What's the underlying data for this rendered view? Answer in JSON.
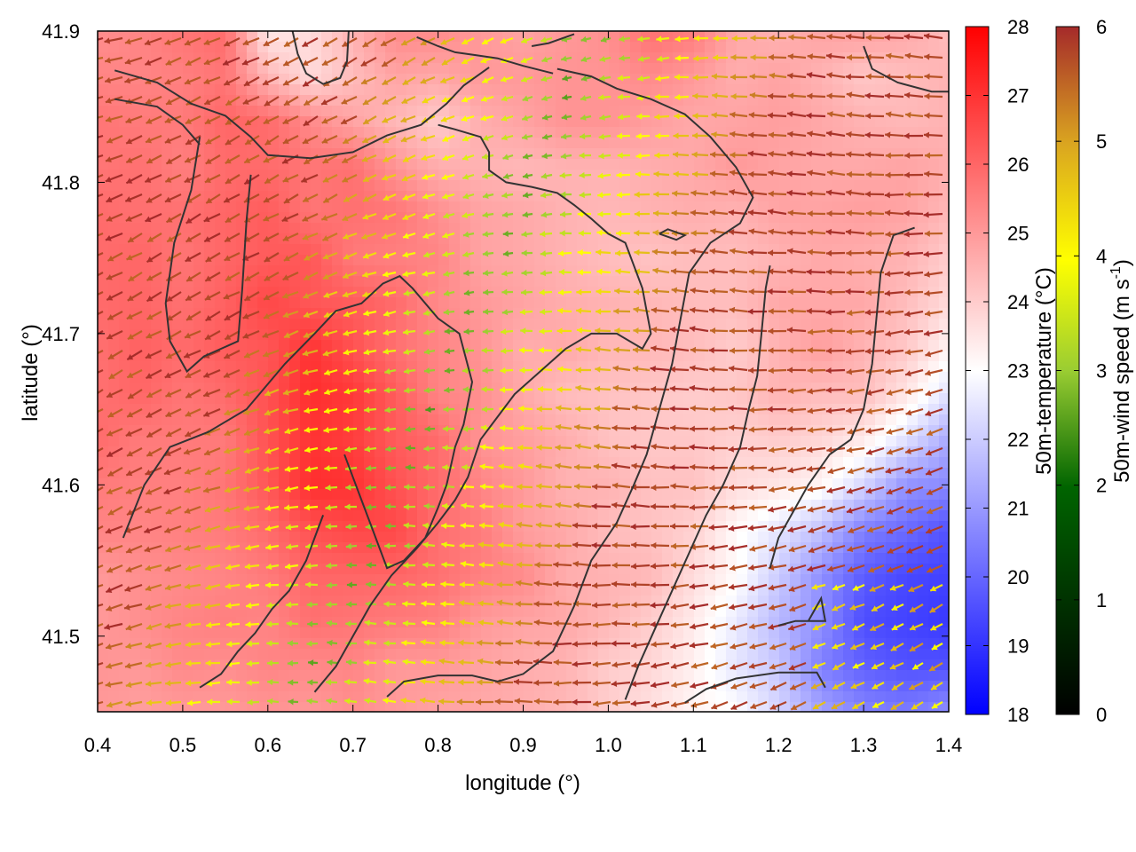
{
  "chart_data": {
    "type": "heatmap",
    "title": "",
    "xlabel": "longitude (°)",
    "ylabel": "latitude (°)",
    "xlim": [
      0.4,
      1.4
    ],
    "ylim": [
      41.45,
      41.9
    ],
    "xticks": [
      "0.4",
      "0.5",
      "0.6",
      "0.7",
      "0.8",
      "0.9",
      "1.0",
      "1.1",
      "1.2",
      "1.3",
      "1.4"
    ],
    "yticks": [
      "41.5",
      "41.6",
      "41.7",
      "41.8",
      "41.9"
    ],
    "xtick_values": [
      0.4,
      0.5,
      0.6,
      0.7,
      0.8,
      0.9,
      1.0,
      1.1,
      1.2,
      1.3,
      1.4
    ],
    "ytick_values": [
      41.5,
      41.6,
      41.7,
      41.8,
      41.9
    ],
    "temperature_colorbar": {
      "label": "50m-temperature (°C)",
      "range": [
        18,
        28
      ],
      "ticks": [
        "18",
        "19",
        "20",
        "21",
        "22",
        "23",
        "24",
        "25",
        "26",
        "27",
        "28"
      ],
      "tick_values": [
        18,
        19,
        20,
        21,
        22,
        23,
        24,
        25,
        26,
        27,
        28
      ],
      "colors": [
        "#0000ff",
        "#ffffff",
        "#ff0000"
      ]
    },
    "wind_colorbar": {
      "label": "50m-wind speed (m s",
      "label_sup": "-1",
      "label_end": ")",
      "range": [
        0,
        6
      ],
      "ticks": [
        "0",
        "1",
        "2",
        "3",
        "4",
        "5",
        "6"
      ],
      "tick_values": [
        0,
        1,
        2,
        3,
        4,
        5,
        6
      ],
      "colors": [
        "#000000",
        "#006400",
        "#9acd32",
        "#ffff00",
        "#daa520",
        "#a52a2a"
      ]
    },
    "temperature_field": [
      [
        25.2,
        25.4,
        25.7,
        25.9,
        23.4,
        23.7,
        24.5,
        25.3,
        25.3,
        25.0,
        24.8,
        25.0,
        25.2,
        25.8,
        25.6,
        24.7,
        24.5,
        24.8,
        24.9,
        24.7,
        24.3
      ],
      [
        25.4,
        25.4,
        25.5,
        25.7,
        24.4,
        23.7,
        24.3,
        24.8,
        24.7,
        25.0,
        25.0,
        25.1,
        25.1,
        25.3,
        25.0,
        24.6,
        24.8,
        24.5,
        24.1,
        24.3,
        24.5
      ],
      [
        25.7,
        25.6,
        25.6,
        26.0,
        25.9,
        25.3,
        24.8,
        24.4,
        24.0,
        24.6,
        24.8,
        25.1,
        25.1,
        24.9,
        24.7,
        24.8,
        24.9,
        24.7,
        24.5,
        24.4,
        24.5
      ],
      [
        25.7,
        25.8,
        25.5,
        25.9,
        25.9,
        25.7,
        25.8,
        25.1,
        24.6,
        24.5,
        24.4,
        24.5,
        24.5,
        24.6,
        24.7,
        25.0,
        24.8,
        24.7,
        24.7,
        24.8,
        24.6
      ],
      [
        25.9,
        25.8,
        25.8,
        26.0,
        26.2,
        25.7,
        25.8,
        25.7,
        25.2,
        24.8,
        24.7,
        24.5,
        24.4,
        24.5,
        24.6,
        24.5,
        24.8,
        24.8,
        24.9,
        24.8,
        24.4
      ],
      [
        25.9,
        26.0,
        25.7,
        26.0,
        26.2,
        26.3,
        25.6,
        25.5,
        25.4,
        24.8,
        24.7,
        24.5,
        24.3,
        24.2,
        24.3,
        24.3,
        24.5,
        24.7,
        24.6,
        24.5,
        24.0
      ],
      [
        25.9,
        26.0,
        25.8,
        26.1,
        26.6,
        26.3,
        26.2,
        25.9,
        25.3,
        25.0,
        24.8,
        24.6,
        24.5,
        24.4,
        24.3,
        24.3,
        24.7,
        24.7,
        24.7,
        24.3,
        23.7
      ],
      [
        25.8,
        26.1,
        25.9,
        26.2,
        26.3,
        27.0,
        26.4,
        25.8,
        25.4,
        25.1,
        24.6,
        24.7,
        24.4,
        24.4,
        24.3,
        24.0,
        24.5,
        24.9,
        24.5,
        24.1,
        23.2
      ],
      [
        25.8,
        26.0,
        25.7,
        25.9,
        26.4,
        27.1,
        26.9,
        26.2,
        25.4,
        25.2,
        24.7,
        24.3,
        24.2,
        24.1,
        24.0,
        24.1,
        24.5,
        24.3,
        24.3,
        23.5,
        22.4
      ],
      [
        25.9,
        25.6,
        25.6,
        25.6,
        26.4,
        27.0,
        26.8,
        26.2,
        25.9,
        25.1,
        24.9,
        24.6,
        24.2,
        24.1,
        24.1,
        23.9,
        24.0,
        23.8,
        23.4,
        22.4,
        21.3
      ],
      [
        25.6,
        25.5,
        25.5,
        25.7,
        26.3,
        27.1,
        27.0,
        26.4,
        25.9,
        25.4,
        25.0,
        24.5,
        24.5,
        24.2,
        24.2,
        23.7,
        23.5,
        23.2,
        22.2,
        20.9,
        20.7
      ],
      [
        25.4,
        25.4,
        25.5,
        25.6,
        25.9,
        26.4,
        26.6,
        26.6,
        25.8,
        25.6,
        24.9,
        24.7,
        24.3,
        24.2,
        23.9,
        23.1,
        22.5,
        21.8,
        20.5,
        20.1,
        19.6
      ],
      [
        25.0,
        25.2,
        25.3,
        25.4,
        25.6,
        26.0,
        26.0,
        26.0,
        25.8,
        25.5,
        25.3,
        24.6,
        24.5,
        24.4,
        23.7,
        23.1,
        22.0,
        20.8,
        19.8,
        19.4,
        19.3
      ],
      [
        25.0,
        25.2,
        25.4,
        25.5,
        25.4,
        25.8,
        25.7,
        25.6,
        25.5,
        25.0,
        24.8,
        24.7,
        24.4,
        24.0,
        23.4,
        22.6,
        21.6,
        20.8,
        19.5,
        19.3,
        19.1
      ],
      [
        25.1,
        25.0,
        25.3,
        25.2,
        25.4,
        25.3,
        25.4,
        25.0,
        25.0,
        24.8,
        24.6,
        24.5,
        24.0,
        23.8,
        23.3,
        22.5,
        21.9,
        20.5,
        19.9,
        19.6,
        19.6
      ],
      [
        25.0,
        24.9,
        25.0,
        25.0,
        25.1,
        25.0,
        25.2,
        25.0,
        24.8,
        24.7,
        24.6,
        24.4,
        24.0,
        23.6,
        23.2,
        23.0,
        22.2,
        21.2,
        20.6,
        20.4,
        20.8
      ]
    ],
    "wind_note": "",
    "contours": [
      {
        "name": "contour-1",
        "points": [
          [
            0.42,
            41.874
          ],
          [
            0.47,
            41.866
          ],
          [
            0.51,
            41.852
          ],
          [
            0.55,
            41.844
          ],
          [
            0.58,
            41.83
          ],
          [
            0.6,
            41.818
          ],
          [
            0.65,
            41.816
          ],
          [
            0.7,
            41.82
          ],
          [
            0.74,
            41.831
          ],
          [
            0.78,
            41.838
          ],
          [
            0.81,
            41.852
          ],
          [
            0.83,
            41.864
          ],
          [
            0.86,
            41.876
          ]
        ]
      },
      {
        "name": "contour-2",
        "points": [
          [
            0.42,
            41.855
          ],
          [
            0.47,
            41.85
          ],
          [
            0.5,
            41.838
          ],
          [
            0.52,
            41.825
          ]
        ]
      },
      {
        "name": "contour-3",
        "points": [
          [
            0.629,
            41.9
          ],
          [
            0.635,
            41.885
          ],
          [
            0.645,
            41.872
          ],
          [
            0.665,
            41.865
          ],
          [
            0.685,
            41.869
          ],
          [
            0.693,
            41.88
          ],
          [
            0.695,
            41.9
          ]
        ]
      },
      {
        "name": "contour-4",
        "points": [
          [
            0.775,
            41.896
          ],
          [
            0.8,
            41.89
          ],
          [
            0.82,
            41.886
          ],
          [
            0.845,
            41.884
          ],
          [
            0.87,
            41.882
          ],
          [
            0.9,
            41.877
          ],
          [
            0.935,
            41.872
          ]
        ]
      },
      {
        "name": "contour-5",
        "points": [
          [
            0.91,
            41.89
          ],
          [
            0.93,
            41.892
          ],
          [
            0.96,
            41.898
          ]
        ]
      },
      {
        "name": "contour-6",
        "points": [
          [
            0.52,
            41.83
          ],
          [
            0.51,
            41.795
          ],
          [
            0.49,
            41.76
          ],
          [
            0.48,
            41.72
          ],
          [
            0.485,
            41.695
          ],
          [
            0.505,
            41.675
          ],
          [
            0.525,
            41.685
          ],
          [
            0.565,
            41.695
          ],
          [
            0.57,
            41.73
          ],
          [
            0.575,
            41.775
          ],
          [
            0.58,
            41.805
          ]
        ]
      },
      {
        "name": "contour-7",
        "points": [
          [
            0.43,
            41.565
          ],
          [
            0.455,
            41.6
          ],
          [
            0.485,
            41.625
          ],
          [
            0.53,
            41.635
          ],
          [
            0.575,
            41.65
          ],
          [
            0.62,
            41.68
          ],
          [
            0.655,
            41.7
          ],
          [
            0.68,
            41.715
          ],
          [
            0.71,
            41.72
          ],
          [
            0.735,
            41.733
          ],
          [
            0.755,
            41.738
          ],
          [
            0.77,
            41.73
          ],
          [
            0.8,
            41.71
          ],
          [
            0.825,
            41.7
          ],
          [
            0.84,
            41.668
          ],
          [
            0.83,
            41.64
          ],
          [
            0.82,
            41.625
          ],
          [
            0.81,
            41.6
          ],
          [
            0.8,
            41.585
          ],
          [
            0.785,
            41.565
          ],
          [
            0.76,
            41.55
          ],
          [
            0.74,
            41.545
          ],
          [
            0.73,
            41.56
          ],
          [
            0.72,
            41.575
          ],
          [
            0.71,
            41.59
          ],
          [
            0.7,
            41.605
          ],
          [
            0.69,
            41.62
          ]
        ]
      },
      {
        "name": "contour-8",
        "points": [
          [
            0.52,
            41.466
          ],
          [
            0.545,
            41.475
          ],
          [
            0.565,
            41.49
          ],
          [
            0.585,
            41.502
          ],
          [
            0.605,
            41.518
          ],
          [
            0.625,
            41.53
          ],
          [
            0.645,
            41.55
          ],
          [
            0.655,
            41.565
          ],
          [
            0.665,
            41.58
          ]
        ]
      },
      {
        "name": "contour-9",
        "points": [
          [
            0.655,
            41.463
          ],
          [
            0.68,
            41.48
          ],
          [
            0.7,
            41.5
          ],
          [
            0.72,
            41.52
          ],
          [
            0.745,
            41.54
          ],
          [
            0.775,
            41.558
          ],
          [
            0.8,
            41.575
          ],
          [
            0.82,
            41.59
          ],
          [
            0.835,
            41.605
          ],
          [
            0.85,
            41.63
          ],
          [
            0.87,
            41.645
          ],
          [
            0.89,
            41.66
          ],
          [
            0.92,
            41.675
          ],
          [
            0.95,
            41.69
          ],
          [
            0.98,
            41.7
          ],
          [
            1.01,
            41.7
          ],
          [
            1.04,
            41.69
          ],
          [
            1.05,
            41.7
          ],
          [
            1.04,
            41.73
          ],
          [
            1.03,
            41.745
          ],
          [
            1.02,
            41.76
          ],
          [
            1.0,
            41.766
          ],
          [
            0.98,
            41.776
          ],
          [
            0.96,
            41.785
          ],
          [
            0.94,
            41.793
          ],
          [
            0.91,
            41.797
          ],
          [
            0.88,
            41.8
          ],
          [
            0.86,
            41.808
          ],
          [
            0.86,
            41.82
          ],
          [
            0.85,
            41.83
          ],
          [
            0.82,
            41.835
          ],
          [
            0.8,
            41.838
          ]
        ]
      },
      {
        "name": "contour-10",
        "points": [
          [
            0.74,
            41.46
          ],
          [
            0.76,
            41.47
          ],
          [
            0.8,
            41.474
          ],
          [
            0.84,
            41.474
          ],
          [
            0.87,
            41.47
          ],
          [
            0.9,
            41.475
          ],
          [
            0.935,
            41.49
          ],
          [
            0.96,
            41.52
          ],
          [
            0.98,
            41.55
          ],
          [
            1.01,
            41.575
          ],
          [
            1.03,
            41.6
          ],
          [
            1.045,
            41.62
          ],
          [
            1.06,
            41.65
          ],
          [
            1.075,
            41.68
          ],
          [
            1.085,
            41.71
          ],
          [
            1.095,
            41.74
          ],
          [
            1.12,
            41.76
          ],
          [
            1.155,
            41.773
          ],
          [
            1.17,
            41.79
          ],
          [
            1.15,
            41.81
          ],
          [
            1.12,
            41.83
          ],
          [
            1.09,
            41.845
          ],
          [
            1.05,
            41.855
          ],
          [
            1.01,
            41.862
          ],
          [
            0.98,
            41.87
          ],
          [
            0.94,
            41.875
          ]
        ]
      },
      {
        "name": "contour-11",
        "points": [
          [
            1.06,
            41.766
          ],
          [
            1.08,
            41.762
          ],
          [
            1.09,
            41.765
          ],
          [
            1.07,
            41.769
          ],
          [
            1.06,
            41.766
          ]
        ]
      },
      {
        "name": "contour-12",
        "points": [
          [
            1.02,
            41.458
          ],
          [
            1.035,
            41.48
          ],
          [
            1.055,
            41.505
          ],
          [
            1.075,
            41.53
          ],
          [
            1.095,
            41.555
          ],
          [
            1.115,
            41.58
          ],
          [
            1.135,
            41.6
          ],
          [
            1.155,
            41.625
          ],
          [
            1.165,
            41.65
          ],
          [
            1.175,
            41.672
          ],
          [
            1.18,
            41.7
          ],
          [
            1.185,
            41.73
          ],
          [
            1.19,
            41.745
          ]
        ]
      },
      {
        "name": "contour-13",
        "points": [
          [
            1.09,
            41.456
          ],
          [
            1.115,
            41.465
          ],
          [
            1.15,
            41.472
          ],
          [
            1.2,
            41.476
          ],
          [
            1.245,
            41.476
          ],
          [
            1.255,
            41.466
          ]
        ]
      },
      {
        "name": "contour-14",
        "points": [
          [
            1.2,
            41.507
          ],
          [
            1.22,
            41.51
          ],
          [
            1.24,
            41.51
          ],
          [
            1.255,
            41.51
          ],
          [
            1.25,
            41.525
          ],
          [
            1.235,
            41.51
          ]
        ]
      },
      {
        "name": "contour-15",
        "points": [
          [
            1.19,
            41.545
          ],
          [
            1.2,
            41.565
          ],
          [
            1.215,
            41.58
          ],
          [
            1.235,
            41.6
          ],
          [
            1.26,
            41.62
          ],
          [
            1.285,
            41.63
          ],
          [
            1.3,
            41.65
          ],
          [
            1.31,
            41.68
          ],
          [
            1.315,
            41.71
          ],
          [
            1.32,
            41.74
          ],
          [
            1.335,
            41.765
          ],
          [
            1.36,
            41.77
          ]
        ]
      },
      {
        "name": "contour-16",
        "points": [
          [
            1.3,
            41.89
          ],
          [
            1.31,
            41.875
          ],
          [
            1.34,
            41.866
          ],
          [
            1.38,
            41.86
          ],
          [
            1.4,
            41.86
          ]
        ]
      }
    ]
  }
}
